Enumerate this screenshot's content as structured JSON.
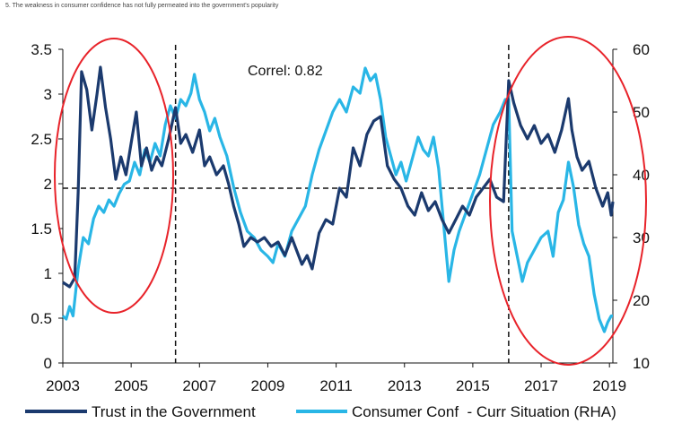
{
  "title": "5. The weakness in consumer confidence has not fully permeated into the government's popularity",
  "chart_data": {
    "type": "line",
    "title": "5. The weakness in consumer confidence has not fully permeated into the government's popularity",
    "x_ticks": [
      "2003",
      "2005",
      "2007",
      "2009",
      "2011",
      "2013",
      "2015",
      "2017",
      "2019"
    ],
    "y_left_ticks": [
      "0",
      "0.5",
      "1",
      "1.5",
      "2",
      "2.5",
      "3",
      "3.5"
    ],
    "y_right_ticks": [
      "10",
      "20",
      "30",
      "40",
      "50",
      "60"
    ],
    "y_left_range": [
      0,
      3.5
    ],
    "y_right_range": [
      10,
      60
    ],
    "x_range": [
      2003,
      2019.1
    ],
    "annotation": "Correl: 0.82",
    "reference_lines": {
      "horizontal_left_value": 1.95,
      "vertical_dates": [
        2006.3,
        2016.05
      ]
    },
    "series": [
      {
        "name": "Trust in the Government",
        "axis": "left",
        "color": "#1b3a6e",
        "points": [
          [
            2003.0,
            0.9
          ],
          [
            2003.2,
            0.85
          ],
          [
            2003.35,
            0.95
          ],
          [
            2003.45,
            1.9
          ],
          [
            2003.55,
            3.25
          ],
          [
            2003.7,
            3.05
          ],
          [
            2003.85,
            2.6
          ],
          [
            2004.0,
            3.0
          ],
          [
            2004.1,
            3.3
          ],
          [
            2004.25,
            2.85
          ],
          [
            2004.4,
            2.5
          ],
          [
            2004.55,
            2.05
          ],
          [
            2004.7,
            2.3
          ],
          [
            2004.85,
            2.1
          ],
          [
            2005.0,
            2.45
          ],
          [
            2005.15,
            2.8
          ],
          [
            2005.3,
            2.2
          ],
          [
            2005.45,
            2.4
          ],
          [
            2005.6,
            2.15
          ],
          [
            2005.75,
            2.3
          ],
          [
            2005.9,
            2.2
          ],
          [
            2006.1,
            2.5
          ],
          [
            2006.3,
            2.85
          ],
          [
            2006.45,
            2.45
          ],
          [
            2006.6,
            2.55
          ],
          [
            2006.8,
            2.35
          ],
          [
            2007.0,
            2.6
          ],
          [
            2007.15,
            2.2
          ],
          [
            2007.3,
            2.3
          ],
          [
            2007.5,
            2.1
          ],
          [
            2007.7,
            2.2
          ],
          [
            2007.85,
            2.0
          ],
          [
            2008.0,
            1.75
          ],
          [
            2008.15,
            1.55
          ],
          [
            2008.3,
            1.3
          ],
          [
            2008.5,
            1.4
          ],
          [
            2008.7,
            1.35
          ],
          [
            2008.9,
            1.4
          ],
          [
            2009.1,
            1.3
          ],
          [
            2009.3,
            1.35
          ],
          [
            2009.5,
            1.2
          ],
          [
            2009.7,
            1.4
          ],
          [
            2009.85,
            1.25
          ],
          [
            2010.0,
            1.1
          ],
          [
            2010.15,
            1.2
          ],
          [
            2010.3,
            1.05
          ],
          [
            2010.5,
            1.45
          ],
          [
            2010.7,
            1.6
          ],
          [
            2010.9,
            1.55
          ],
          [
            2011.1,
            1.95
          ],
          [
            2011.3,
            1.85
          ],
          [
            2011.5,
            2.4
          ],
          [
            2011.7,
            2.2
          ],
          [
            2011.9,
            2.55
          ],
          [
            2012.1,
            2.7
          ],
          [
            2012.3,
            2.75
          ],
          [
            2012.5,
            2.2
          ],
          [
            2012.7,
            2.05
          ],
          [
            2012.9,
            1.95
          ],
          [
            2013.1,
            1.75
          ],
          [
            2013.3,
            1.65
          ],
          [
            2013.5,
            1.9
          ],
          [
            2013.7,
            1.7
          ],
          [
            2013.9,
            1.8
          ],
          [
            2014.1,
            1.6
          ],
          [
            2014.3,
            1.45
          ],
          [
            2014.5,
            1.6
          ],
          [
            2014.7,
            1.75
          ],
          [
            2014.9,
            1.65
          ],
          [
            2015.1,
            1.85
          ],
          [
            2015.3,
            1.95
          ],
          [
            2015.5,
            2.05
          ],
          [
            2015.7,
            1.85
          ],
          [
            2015.9,
            1.8
          ],
          [
            2016.05,
            3.15
          ],
          [
            2016.2,
            2.9
          ],
          [
            2016.4,
            2.65
          ],
          [
            2016.6,
            2.5
          ],
          [
            2016.8,
            2.65
          ],
          [
            2017.0,
            2.45
          ],
          [
            2017.2,
            2.55
          ],
          [
            2017.4,
            2.35
          ],
          [
            2017.6,
            2.6
          ],
          [
            2017.8,
            2.95
          ],
          [
            2017.9,
            2.6
          ],
          [
            2018.05,
            2.3
          ],
          [
            2018.2,
            2.15
          ],
          [
            2018.4,
            2.25
          ],
          [
            2018.6,
            1.95
          ],
          [
            2018.8,
            1.75
          ],
          [
            2018.95,
            1.9
          ],
          [
            2019.05,
            1.65
          ],
          [
            2019.1,
            1.8
          ]
        ]
      },
      {
        "name": "Consumer Conf  - Curr Situation (RHA)",
        "axis": "right",
        "color": "#29b6e6",
        "points": [
          [
            2003.0,
            17.5
          ],
          [
            2003.1,
            17.0
          ],
          [
            2003.2,
            19.0
          ],
          [
            2003.3,
            17.5
          ],
          [
            2003.45,
            25.0
          ],
          [
            2003.6,
            30.0
          ],
          [
            2003.75,
            29.0
          ],
          [
            2003.9,
            33.0
          ],
          [
            2004.05,
            35.0
          ],
          [
            2004.2,
            34.0
          ],
          [
            2004.35,
            36.0
          ],
          [
            2004.5,
            35.0
          ],
          [
            2004.65,
            37.0
          ],
          [
            2004.8,
            38.5
          ],
          [
            2004.95,
            39.0
          ],
          [
            2005.1,
            42.0
          ],
          [
            2005.25,
            40.0
          ],
          [
            2005.4,
            44.0
          ],
          [
            2005.55,
            42.0
          ],
          [
            2005.7,
            45.0
          ],
          [
            2005.85,
            43.0
          ],
          [
            2006.0,
            48.0
          ],
          [
            2006.15,
            51.0
          ],
          [
            2006.3,
            49.0
          ],
          [
            2006.45,
            52.0
          ],
          [
            2006.6,
            51.0
          ],
          [
            2006.75,
            53.0
          ],
          [
            2006.85,
            56.0
          ],
          [
            2007.0,
            52.0
          ],
          [
            2007.15,
            50.0
          ],
          [
            2007.3,
            47.0
          ],
          [
            2007.45,
            49.0
          ],
          [
            2007.6,
            46.0
          ],
          [
            2007.8,
            43.0
          ],
          [
            2008.0,
            38.0
          ],
          [
            2008.2,
            34.0
          ],
          [
            2008.4,
            31.0
          ],
          [
            2008.6,
            30.0
          ],
          [
            2008.8,
            28.0
          ],
          [
            2009.0,
            27.0
          ],
          [
            2009.15,
            26.0
          ],
          [
            2009.3,
            29.0
          ],
          [
            2009.5,
            27.0
          ],
          [
            2009.7,
            31.0
          ],
          [
            2009.9,
            33.0
          ],
          [
            2010.1,
            35.0
          ],
          [
            2010.3,
            40.0
          ],
          [
            2010.5,
            44.0
          ],
          [
            2010.7,
            47.0
          ],
          [
            2010.9,
            50.0
          ],
          [
            2011.1,
            52.0
          ],
          [
            2011.3,
            50.0
          ],
          [
            2011.5,
            54.0
          ],
          [
            2011.7,
            53.0
          ],
          [
            2011.85,
            57.0
          ],
          [
            2012.0,
            55.0
          ],
          [
            2012.15,
            56.0
          ],
          [
            2012.3,
            52.0
          ],
          [
            2012.45,
            46.0
          ],
          [
            2012.6,
            43.0
          ],
          [
            2012.75,
            40.0
          ],
          [
            2012.9,
            42.0
          ],
          [
            2013.05,
            39.0
          ],
          [
            2013.2,
            42.0
          ],
          [
            2013.4,
            46.0
          ],
          [
            2013.55,
            44.0
          ],
          [
            2013.7,
            43.0
          ],
          [
            2013.85,
            46.0
          ],
          [
            2014.0,
            41.0
          ],
          [
            2014.15,
            32.0
          ],
          [
            2014.3,
            23.0
          ],
          [
            2014.45,
            28.0
          ],
          [
            2014.6,
            31.0
          ],
          [
            2014.8,
            34.0
          ],
          [
            2015.0,
            37.0
          ],
          [
            2015.2,
            40.0
          ],
          [
            2015.4,
            44.0
          ],
          [
            2015.6,
            48.0
          ],
          [
            2015.8,
            50.0
          ],
          [
            2015.95,
            52.0
          ],
          [
            2016.05,
            52.0
          ],
          [
            2016.15,
            31.0
          ],
          [
            2016.3,
            27.0
          ],
          [
            2016.45,
            23.0
          ],
          [
            2016.6,
            26.0
          ],
          [
            2016.8,
            28.0
          ],
          [
            2017.0,
            30.0
          ],
          [
            2017.2,
            31.0
          ],
          [
            2017.35,
            27.0
          ],
          [
            2017.5,
            34.0
          ],
          [
            2017.65,
            36.0
          ],
          [
            2017.8,
            42.0
          ],
          [
            2017.95,
            38.0
          ],
          [
            2018.1,
            32.0
          ],
          [
            2018.25,
            29.0
          ],
          [
            2018.4,
            27.0
          ],
          [
            2018.55,
            21.0
          ],
          [
            2018.7,
            17.0
          ],
          [
            2018.85,
            15.0
          ],
          [
            2018.95,
            16.5
          ],
          [
            2019.05,
            17.5
          ],
          [
            2019.1,
            17.5
          ]
        ]
      }
    ],
    "legend": {
      "placement": "bottom"
    }
  }
}
